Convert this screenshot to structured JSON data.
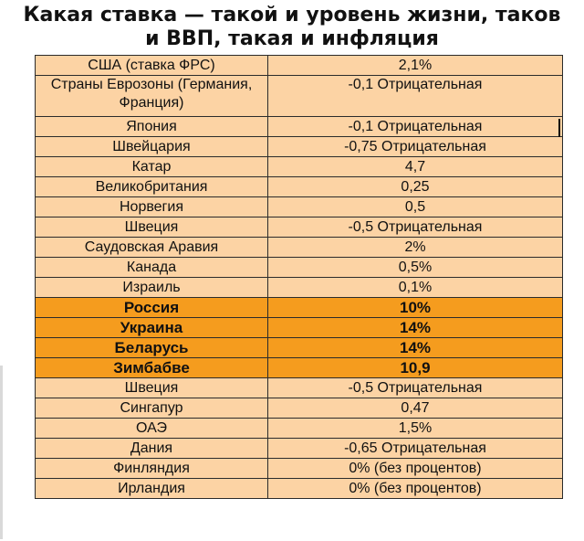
{
  "title": {
    "line1": "Какая ставка — такой и уровень жизни, таков",
    "line2": "и ВВП, такая и инфляция"
  },
  "colors": {
    "row_bg": "#fcd3a4",
    "highlight_bg": "#f59c1e",
    "border": "#2b2b2b"
  },
  "rows": [
    {
      "country": "США (ставка ФРС)",
      "rate": "2,1%"
    },
    {
      "country": "Страны Еврозоны (Германия, Франция)",
      "rate": "-0,1 Отрицательная"
    },
    {
      "country": "Япония",
      "rate": "-0,1 Отрицательная"
    },
    {
      "country": "Швейцария",
      "rate": "-0,75 Отрицательная"
    },
    {
      "country": "Катар",
      "rate": "4,7"
    },
    {
      "country": "Великобритания",
      "rate": "0,25"
    },
    {
      "country": "Норвегия",
      "rate": "0,5"
    },
    {
      "country": "Швеция",
      "rate": "-0,5 Отрицательная"
    },
    {
      "country": "Саудовская Аравия",
      "rate": "2%"
    },
    {
      "country": "Канада",
      "rate": "0,5%"
    },
    {
      "country": "Израиль",
      "rate": "0,1%"
    },
    {
      "country": "Россия",
      "rate": "10%"
    },
    {
      "country": "Украина",
      "rate": "14%"
    },
    {
      "country": "Беларусь",
      "rate": "14%"
    },
    {
      "country": "Зимбабве",
      "rate": "10,9"
    },
    {
      "country": "Швеция",
      "rate": "-0,5 Отрицательная"
    },
    {
      "country": "Сингапур",
      "rate": "0,47"
    },
    {
      "country": "ОАЭ",
      "rate": "1,5%"
    },
    {
      "country": "Дания",
      "rate": "-0,65 Отрицательная"
    },
    {
      "country": "Финляндия",
      "rate": "0% (без процентов)"
    },
    {
      "country": "Ирландия",
      "rate": "0% (без процентов)"
    }
  ]
}
